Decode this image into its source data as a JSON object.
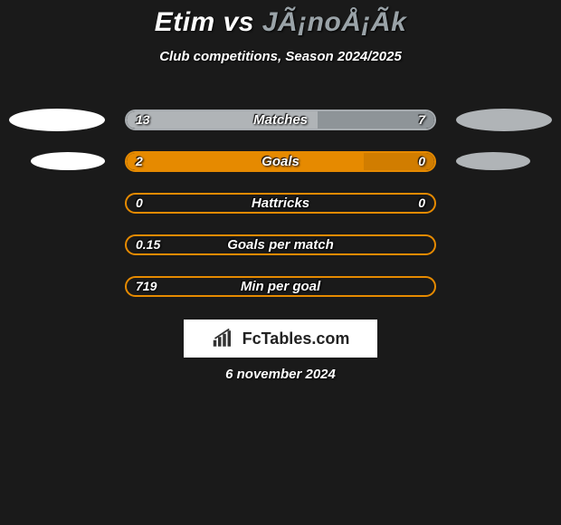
{
  "header": {
    "player1": "Etim",
    "vs": "vs",
    "player2": "JÃ¡noÅ¡Ã­k",
    "player1_color": "#ffffff",
    "player2_color": "#9aa3a8"
  },
  "subtitle": "Club competitions, Season 2024/2025",
  "colors": {
    "background": "#1a1a1a",
    "ellipse_left": "#ffffff",
    "ellipse_right": "#b0b4b7",
    "text": "#ffffff"
  },
  "stats": [
    {
      "label": "Matches",
      "left_value": "13",
      "right_value": "7",
      "left_fill_pct": 62,
      "right_fill_pct": 38,
      "left_fill_color": "#b0b4b7",
      "right_fill_color": "#8e9498",
      "border_color": "#a7acb0",
      "show_ellipses": true,
      "show_right_value": true
    },
    {
      "label": "Goals",
      "left_value": "2",
      "right_value": "0",
      "left_fill_pct": 77,
      "right_fill_pct": 23,
      "left_fill_color": "#e68a00",
      "right_fill_color": "#d17d00",
      "border_color": "#e68a00",
      "show_ellipses": true,
      "show_right_value": true
    },
    {
      "label": "Hattricks",
      "left_value": "0",
      "right_value": "0",
      "left_fill_pct": 0,
      "right_fill_pct": 0,
      "left_fill_color": "#e68a00",
      "right_fill_color": "#e68a00",
      "border_color": "#e68a00",
      "show_ellipses": false,
      "show_right_value": true
    },
    {
      "label": "Goals per match",
      "left_value": "0.15",
      "right_value": "",
      "left_fill_pct": 0,
      "right_fill_pct": 0,
      "left_fill_color": "#e68a00",
      "right_fill_color": "#e68a00",
      "border_color": "#e68a00",
      "show_ellipses": false,
      "show_right_value": false
    },
    {
      "label": "Min per goal",
      "left_value": "719",
      "right_value": "",
      "left_fill_pct": 0,
      "right_fill_pct": 0,
      "left_fill_color": "#e68a00",
      "right_fill_color": "#e68a00",
      "border_color": "#e68a00",
      "show_ellipses": false,
      "show_right_value": false
    }
  ],
  "watermark": {
    "text": "FcTables.com",
    "icon_color": "#333333"
  },
  "date": "6 november 2024"
}
